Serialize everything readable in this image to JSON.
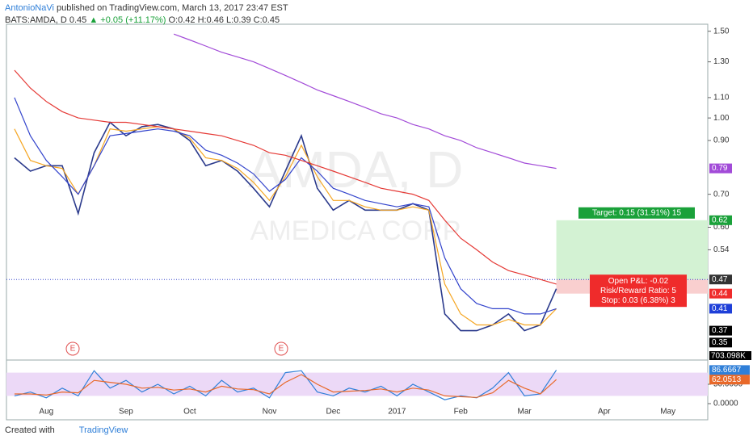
{
  "header": {
    "author": "AntonioNaVi",
    "published": "published on TradingView.com, March 13, 2017 23:47 EST",
    "symbol": "BATS:AMDA, D",
    "last": "0.45",
    "change": "▲ +0.05 (+11.17%)",
    "ohlc": "O:0.42 H:0.46 L:0.39 C:0.45"
  },
  "chart_data": [
    {
      "type": "line",
      "log_scale": true,
      "watermark": "AMDA, D",
      "watermark_sub": "AMEDICA CORP",
      "events": [
        "E",
        "E"
      ],
      "volume_label": "703.098K",
      "categories": [
        null,
        null,
        "Aug",
        null,
        null,
        null,
        null,
        "Sep",
        null,
        null,
        null,
        "Oct",
        null,
        null,
        null,
        null,
        "Nov",
        null,
        null,
        null,
        "Dec",
        null,
        null,
        null,
        "2017",
        null,
        null,
        null,
        "Feb",
        null,
        null,
        null,
        "Mar",
        null,
        null,
        null,
        null,
        "Apr",
        null,
        null,
        null,
        "May",
        null,
        null
      ],
      "ylim": [
        0.34,
        1.55
      ],
      "yticks": [
        {
          "value": 1.5,
          "label": "1.50"
        },
        {
          "value": 1.3,
          "label": "1.30"
        },
        {
          "value": 1.1,
          "label": "1.10"
        },
        {
          "value": 1.0,
          "label": "1.00"
        },
        {
          "value": 0.9,
          "label": "0.90"
        },
        {
          "value": 0.7,
          "label": "0.70"
        },
        {
          "value": 0.6,
          "label": "0.60"
        },
        0.54
      ],
      "series": [
        {
          "color": "#2b3a8c",
          "values": [
            0.83,
            0.78,
            0.8,
            0.8,
            0.64,
            0.85,
            0.98,
            0.92,
            0.96,
            0.97,
            0.95,
            0.9,
            0.8,
            0.82,
            0.78,
            0.72,
            0.66,
            0.78,
            0.92,
            0.72,
            0.65,
            0.68,
            0.65,
            0.65,
            0.65,
            0.67,
            0.65,
            0.4,
            0.37,
            0.37,
            0.38,
            0.4,
            0.37,
            0.38,
            0.45,
            null,
            null,
            null,
            null,
            null,
            null,
            null,
            null,
            null
          ]
        },
        {
          "color": "#f5a623",
          "values": [
            0.95,
            0.82,
            0.8,
            0.79,
            0.7,
            0.8,
            0.95,
            0.94,
            0.95,
            0.96,
            0.95,
            0.91,
            0.83,
            0.82,
            0.79,
            0.74,
            0.68,
            0.76,
            0.88,
            0.76,
            0.68,
            0.68,
            0.66,
            0.65,
            0.65,
            0.66,
            0.65,
            0.46,
            0.4,
            0.38,
            0.38,
            0.39,
            0.38,
            0.38,
            0.41,
            null,
            null,
            null,
            null,
            null,
            null,
            null,
            null,
            null
          ]
        },
        {
          "color": "#3344cc",
          "values": [
            1.1,
            0.92,
            0.82,
            0.76,
            0.7,
            0.8,
            0.92,
            0.93,
            0.94,
            0.95,
            0.94,
            0.92,
            0.86,
            0.84,
            0.81,
            0.77,
            0.71,
            0.75,
            0.83,
            0.78,
            0.72,
            0.7,
            0.68,
            0.67,
            0.66,
            0.67,
            0.66,
            0.52,
            0.45,
            0.42,
            0.41,
            0.41,
            0.4,
            0.4,
            0.41,
            null,
            null,
            null,
            null,
            null,
            null,
            null,
            null,
            null
          ]
        },
        {
          "color": "#e53935",
          "values": [
            1.25,
            1.15,
            1.08,
            1.03,
            1.0,
            0.99,
            0.98,
            0.98,
            0.97,
            0.96,
            0.95,
            0.94,
            0.93,
            0.92,
            0.9,
            0.88,
            0.85,
            0.84,
            0.82,
            0.8,
            0.78,
            0.76,
            0.74,
            0.72,
            0.71,
            0.7,
            0.68,
            0.62,
            0.57,
            0.54,
            0.51,
            0.49,
            0.48,
            0.47,
            0.46,
            null,
            null,
            null,
            null,
            null,
            null,
            null,
            null,
            null
          ]
        },
        {
          "color": "#a24bd8",
          "values": [
            null,
            null,
            null,
            null,
            null,
            null,
            null,
            null,
            null,
            null,
            1.48,
            1.44,
            1.4,
            1.36,
            1.33,
            1.3,
            1.26,
            1.22,
            1.18,
            1.14,
            1.11,
            1.08,
            1.05,
            1.02,
            1.0,
            0.97,
            0.95,
            0.92,
            0.9,
            0.87,
            0.85,
            0.83,
            0.81,
            0.8,
            0.79,
            null,
            null,
            null,
            null,
            null,
            null,
            null,
            null,
            null
          ]
        }
      ],
      "price_labels": [
        {
          "value": 0.79,
          "color": "#a24bd8"
        },
        {
          "value": 0.62,
          "color": "#1aa13a"
        },
        {
          "value": 0.47,
          "color": "#333333"
        },
        {
          "value": 0.44,
          "color": "#ef2b2b"
        },
        {
          "value": 0.41,
          "color": "#1e3fd8"
        },
        {
          "value": 0.37,
          "color": "#000000"
        },
        {
          "value": 0.35,
          "color": "#000000"
        }
      ],
      "position": {
        "entry": 0.47,
        "target": 0.62,
        "stop": 0.44,
        "target_label": "Target: 0.15 (31.91%) 15",
        "pnl_label": "Open P&L: -0.02",
        "rr_label": "Risk/Reward Ratio: 5",
        "stop_label": "Stop: 0.03 (6.38%) 3"
      }
    },
    {
      "type": "line",
      "ylim": [
        0,
        100
      ],
      "band": [
        20,
        80
      ],
      "yticks": [
        {
          "value": 50,
          "label": "50.0000"
        },
        {
          "value": 0,
          "label": "0.0000"
        }
      ],
      "series": [
        {
          "color": "#2f7fd8",
          "values": [
            20,
            30,
            15,
            40,
            20,
            85,
            40,
            60,
            30,
            50,
            25,
            45,
            20,
            60,
            30,
            40,
            15,
            80,
            85,
            30,
            20,
            40,
            30,
            45,
            20,
            50,
            30,
            10,
            20,
            15,
            40,
            80,
            20,
            25,
            86.6667,
            null,
            null,
            null,
            null,
            null,
            null,
            null,
            null,
            null
          ],
          "value_labels": [
            null,
            null,
            null,
            null,
            null,
            null,
            null,
            null,
            null,
            null,
            null,
            null,
            null,
            null,
            null,
            null,
            null,
            null,
            null,
            null,
            null,
            null,
            null,
            null,
            null,
            null,
            null,
            null,
            null,
            null,
            null,
            null,
            null,
            null,
            "86.6667",
            null,
            null,
            null,
            null,
            null,
            null,
            null,
            null,
            null
          ]
        },
        {
          "color": "#e8692a",
          "values": [
            25,
            25,
            22,
            30,
            28,
            60,
            55,
            50,
            40,
            42,
            35,
            38,
            30,
            45,
            38,
            36,
            25,
            55,
            75,
            50,
            30,
            32,
            34,
            38,
            30,
            40,
            35,
            20,
            18,
            16,
            28,
            60,
            40,
            25,
            62.0513,
            null,
            null,
            null,
            null,
            null,
            null,
            null,
            null,
            null
          ],
          "value_labels": [
            null,
            null,
            null,
            null,
            null,
            null,
            null,
            null,
            null,
            null,
            null,
            null,
            null,
            null,
            null,
            null,
            null,
            null,
            null,
            null,
            null,
            null,
            null,
            null,
            null,
            null,
            null,
            null,
            null,
            null,
            null,
            null,
            null,
            null,
            "62.0513",
            null,
            null,
            null,
            null,
            null,
            null,
            null,
            null,
            null
          ]
        }
      ]
    }
  ],
  "footer": {
    "created": "Created with",
    "brand": "TradingView"
  }
}
